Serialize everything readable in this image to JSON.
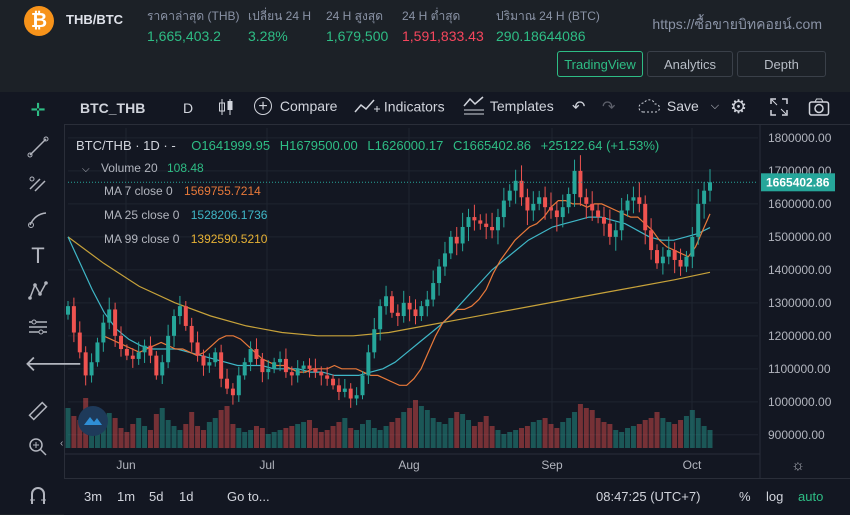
{
  "header": {
    "pair": "THB/BTC",
    "site": "https://ซื้อขายบิทคอยน์.com",
    "stats": [
      {
        "label": "ราคาล่าสุด (THB)",
        "value": "1,665,403.2",
        "tone": "green"
      },
      {
        "label": "เปลี่ยน 24 H",
        "value": "3.28%",
        "tone": "green"
      },
      {
        "label": "24 H สูงสุด",
        "value": "1,679,500",
        "tone": "green"
      },
      {
        "label": "24 H ต่ำสุด",
        "value": "1,591,833.43",
        "tone": "red"
      },
      {
        "label": "ปริมาณ 24 H (BTC)",
        "value": "290.18644086",
        "tone": "green"
      }
    ],
    "tabs": [
      "TradingView",
      "Analytics",
      "Depth"
    ],
    "active_tab": "TradingView"
  },
  "toolbar": {
    "symbol": "BTC_THB",
    "interval": "D",
    "compare": "Compare",
    "indicators": "Indicators",
    "templates": "Templates",
    "save": "Save"
  },
  "legend": {
    "ohlc_title": "BTC/THB · 1D · -",
    "open": "O1641999.95",
    "high": "H1679500.00",
    "low": "L1626000.17",
    "close": "C1665402.86",
    "change": "+25122.64 (+1.53%)",
    "volume_label": "Volume 20",
    "volume_value": "108.48",
    "ma7_label": "MA 7 close 0",
    "ma7_value": "1569755.7214",
    "ma25_label": "MA 25 close 0",
    "ma25_value": "1528206.1736",
    "ma99_label": "MA 99 close 0",
    "ma99_value": "1392590.5210"
  },
  "chart_data": {
    "type": "candlestick",
    "y_axis_ticks": [
      "1800000.00",
      "1700000.00",
      "1600000.00",
      "1500000.00",
      "1400000.00",
      "1300000.00",
      "1200000.00",
      "1100000.00",
      "1000000.00",
      "900000.00"
    ],
    "current_price_label": "1665402.86",
    "x_axis_labels": [
      "Jun",
      "Jul",
      "Aug",
      "Sep",
      "Oct"
    ],
    "ylim": [
      860000,
      1830000
    ],
    "closes": [
      1290000,
      1210000,
      1150000,
      1080000,
      1120000,
      1180000,
      1240000,
      1280000,
      1200000,
      1160000,
      1140000,
      1130000,
      1150000,
      1170000,
      1140000,
      1080000,
      1120000,
      1200000,
      1260000,
      1290000,
      1230000,
      1180000,
      1140000,
      1110000,
      1120000,
      1150000,
      1070000,
      1040000,
      1020000,
      1080000,
      1120000,
      1160000,
      1130000,
      1090000,
      1100000,
      1120000,
      1130000,
      1090000,
      1080000,
      1100000,
      1110000,
      1100000,
      1090000,
      1080000,
      1070000,
      1050000,
      1030000,
      1040000,
      1010000,
      1020000,
      1080000,
      1150000,
      1220000,
      1290000,
      1320000,
      1270000,
      1260000,
      1300000,
      1280000,
      1260000,
      1290000,
      1310000,
      1360000,
      1410000,
      1450000,
      1500000,
      1480000,
      1530000,
      1560000,
      1550000,
      1540000,
      1530000,
      1520000,
      1560000,
      1610000,
      1640000,
      1670000,
      1620000,
      1580000,
      1600000,
      1620000,
      1590000,
      1580000,
      1560000,
      1590000,
      1630000,
      1700000,
      1620000,
      1600000,
      1580000,
      1560000,
      1540000,
      1500000,
      1520000,
      1580000,
      1610000,
      1620000,
      1600000,
      1520000,
      1460000,
      1420000,
      1440000,
      1460000,
      1430000,
      1410000,
      1440000,
      1500000,
      1600000,
      1640000,
      1665402
    ],
    "ma7": [
      1200000,
      1190000,
      1180000,
      1170000,
      1160000,
      1150000,
      1160000,
      1170000,
      1180000,
      1170000,
      1160000,
      1160000,
      1150000,
      1140000,
      1150000,
      1170000,
      1190000,
      1200000,
      1200000,
      1190000,
      1170000,
      1150000,
      1130000,
      1120000,
      1110000,
      1110000,
      1100000,
      1090000,
      1090000,
      1100000,
      1100000,
      1100000,
      1110000,
      1100000,
      1100000,
      1100000,
      1090000,
      1080000,
      1080000,
      1070000,
      1060000,
      1050000,
      1050000,
      1070000,
      1100000,
      1150000,
      1200000,
      1240000,
      1260000,
      1280000,
      1280000,
      1290000,
      1310000,
      1340000,
      1390000,
      1430000,
      1460000,
      1490000,
      1510000,
      1530000,
      1540000,
      1560000,
      1590000,
      1610000,
      1610000,
      1600000,
      1600000,
      1590000,
      1600000,
      1600000,
      1590000,
      1580000,
      1570000,
      1560000,
      1560000,
      1540000,
      1520000,
      1490000,
      1470000,
      1460000,
      1450000,
      1440000,
      1470000,
      1520000,
      1569755
    ],
    "ma25": [
      1500000,
      1420000,
      1340000,
      1270000,
      1220000,
      1190000,
      1170000,
      1160000,
      1160000,
      1160000,
      1150000,
      1140000,
      1130000,
      1120000,
      1110000,
      1110000,
      1110000,
      1100000,
      1100000,
      1100000,
      1090000,
      1090000,
      1080000,
      1080000,
      1080000,
      1090000,
      1100000,
      1120000,
      1150000,
      1180000,
      1210000,
      1240000,
      1280000,
      1320000,
      1360000,
      1400000,
      1430000,
      1460000,
      1490000,
      1510000,
      1530000,
      1540000,
      1550000,
      1560000,
      1560000,
      1550000,
      1540000,
      1520000,
      1500000,
      1490000,
      1490000,
      1500000,
      1510000,
      1528206
    ],
    "ma99": [
      1500000,
      1420000,
      1350000,
      1300000,
      1260000,
      1230000,
      1210000,
      1200000,
      1200000,
      1210000,
      1230000,
      1250000,
      1270000,
      1290000,
      1310000,
      1330000,
      1350000,
      1370000,
      1392590
    ],
    "volumes": [
      40,
      32,
      28,
      50,
      22,
      18,
      26,
      35,
      30,
      20,
      16,
      24,
      30,
      22,
      18,
      34,
      40,
      28,
      22,
      18,
      24,
      36,
      22,
      18,
      26,
      30,
      38,
      42,
      24,
      20,
      16,
      18,
      22,
      20,
      14,
      16,
      18,
      20,
      22,
      24,
      26,
      28,
      20,
      16,
      18,
      22,
      26,
      30,
      20,
      18,
      24,
      28,
      20,
      18,
      22,
      26,
      30,
      36,
      40,
      48,
      42,
      38,
      30,
      26,
      24,
      30,
      36,
      34,
      28,
      22,
      26,
      32,
      22,
      18,
      14,
      16,
      18,
      20,
      22,
      26,
      28,
      30,
      24,
      20,
      26,
      30,
      36,
      44,
      40,
      38,
      30,
      26,
      24,
      18,
      16,
      20,
      22,
      24,
      28,
      30,
      36,
      30,
      26,
      24,
      28,
      32,
      38,
      30,
      22,
      18
    ]
  },
  "bottombar": {
    "ranges": [
      "3m",
      "1m",
      "5d",
      "1d"
    ],
    "goto": "Go to...",
    "time": "08:47:25 (UTC+7)",
    "percent": "%",
    "log": "log",
    "auto": "auto"
  }
}
